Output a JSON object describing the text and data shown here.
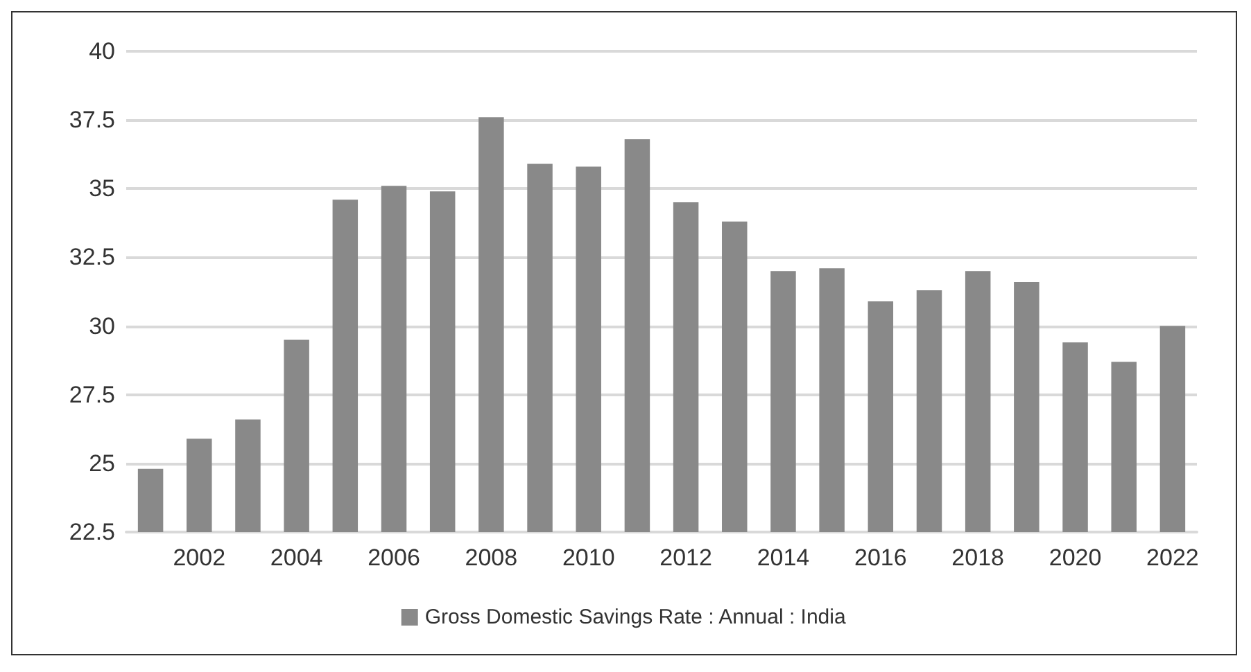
{
  "chart_data": {
    "type": "bar",
    "categories": [
      null,
      "2002",
      null,
      "2004",
      null,
      "2006",
      null,
      "2008",
      null,
      "2010",
      null,
      "2012",
      null,
      "2014",
      null,
      "2016",
      null,
      "2018",
      null,
      "2020",
      null,
      "2022"
    ],
    "series": [
      {
        "name": "Gross Domestic Savings Rate : Annual : India",
        "color": "#898989",
        "values": [
          24.8,
          25.9,
          26.6,
          29.5,
          34.6,
          35.1,
          34.9,
          37.6,
          35.9,
          35.8,
          36.8,
          34.5,
          33.8,
          32.0,
          32.1,
          30.9,
          31.3,
          32.0,
          31.6,
          29.4,
          28.7,
          30.0
        ]
      }
    ],
    "ylim": [
      22.5,
      40
    ],
    "yticks": [
      22.5,
      25,
      27.5,
      30,
      32.5,
      35,
      37.5,
      40
    ],
    "grid": "y",
    "legend": "bottom"
  }
}
